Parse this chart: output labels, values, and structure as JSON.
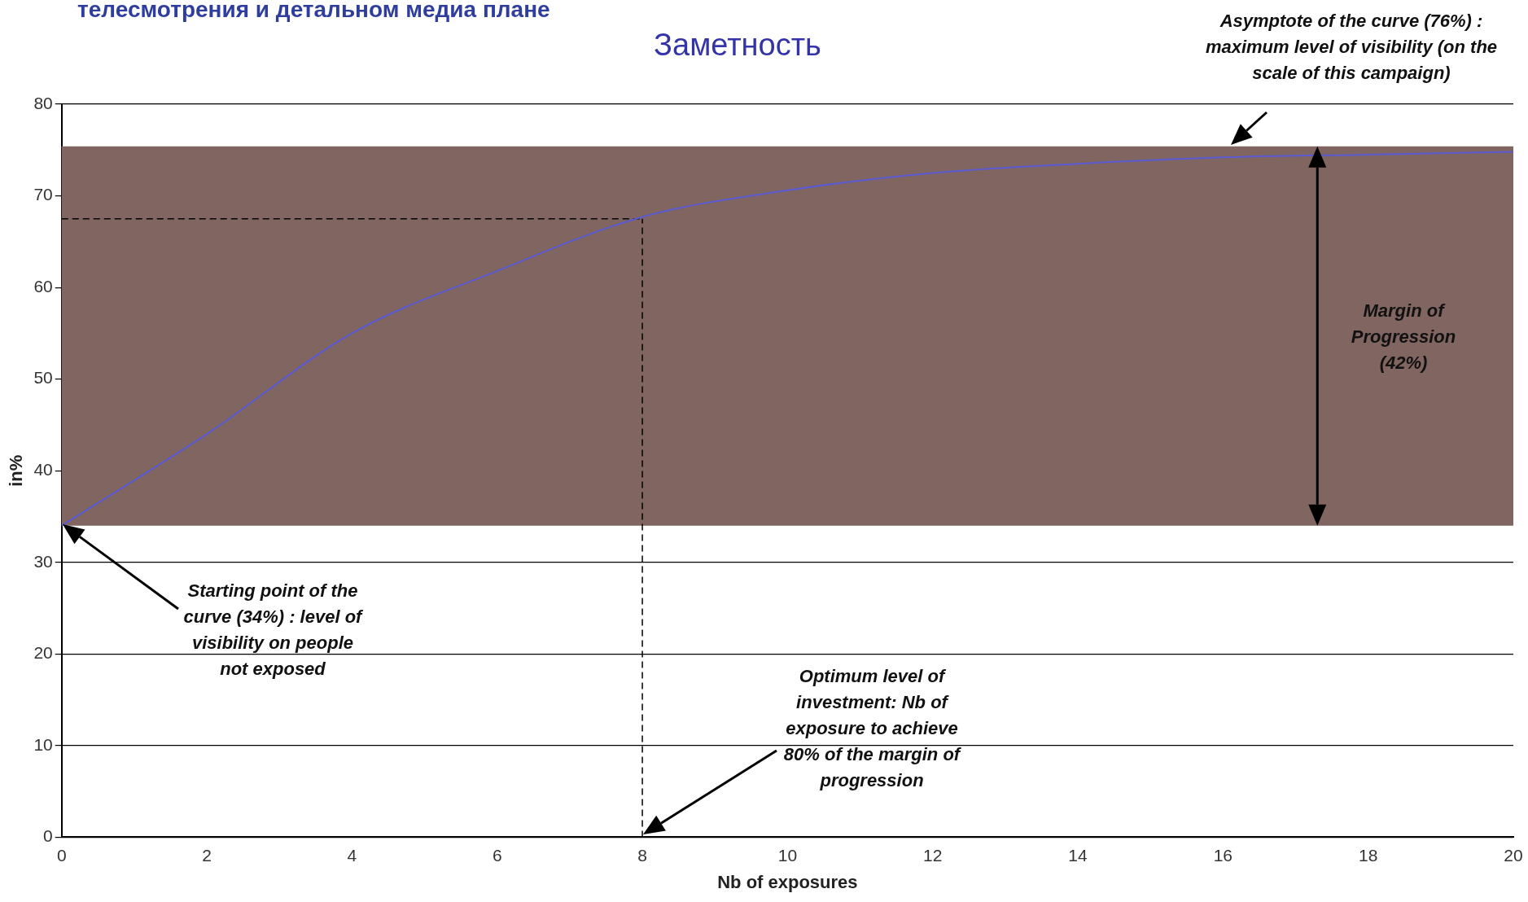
{
  "chart_data": {
    "type": "line",
    "title": "Заметность",
    "subtitle": "телесмотрения и детальном медиа плане",
    "xlabel": "Nb of exposures",
    "ylabel": "in%",
    "x": [
      0,
      2,
      4,
      6,
      8,
      10,
      12,
      14,
      16,
      18,
      20
    ],
    "series": [
      {
        "color": "#5a5ad2",
        "values": [
          34,
          44,
          55,
          61.8,
          67.7,
          70.6,
          72.5,
          73.5,
          74.2,
          74.5,
          74.8
        ]
      }
    ],
    "xlim": [
      0,
      20
    ],
    "xticks": [
      0,
      2,
      4,
      6,
      8,
      10,
      12,
      14,
      16,
      18,
      20
    ],
    "ylim": [
      0,
      80
    ],
    "yticks": [
      0,
      10,
      20,
      30,
      40,
      50,
      60,
      70,
      80
    ],
    "grid": "y",
    "legend": false,
    "marker": "none",
    "line_style": "solid",
    "bands": [
      {
        "axis": "y",
        "from": 34,
        "to": 75.4,
        "color": "#806560"
      }
    ],
    "ref_lines": [
      {
        "axis": "y",
        "value": 67.5,
        "line_style": "dashed"
      },
      {
        "axis": "x",
        "value": 8,
        "line_style": "dashed"
      }
    ],
    "annotations": [
      "Asymptote of the curve (76%) : maximum level of visibility (on the scale of this campaign)",
      "Starting point of the curve (34%) : level of visibility on people not exposed",
      "Optimum level of investment: Nb of exposure to achieve 80% of the margin of progression",
      "Margin of Progression (42%)"
    ]
  }
}
